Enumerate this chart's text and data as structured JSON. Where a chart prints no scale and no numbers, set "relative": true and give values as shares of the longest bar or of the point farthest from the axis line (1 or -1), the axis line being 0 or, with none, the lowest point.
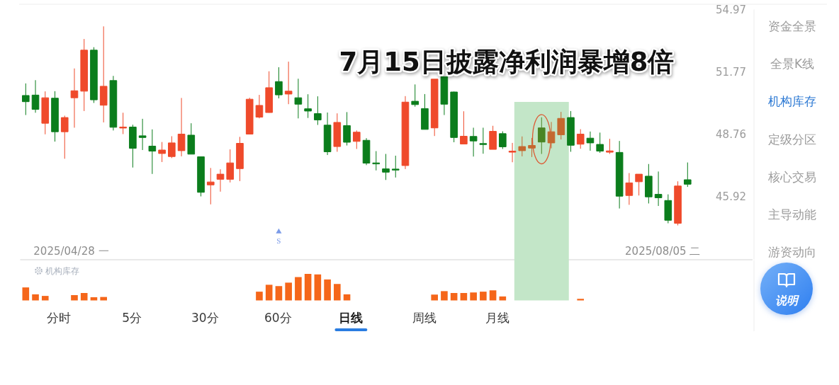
{
  "chart_data": [
    {
      "type": "candlestick",
      "title": "7月15日披露净利润暴增8倍",
      "categories": [
        null,
        null,
        null,
        null,
        null,
        null,
        null,
        null,
        null,
        null,
        null,
        null,
        null,
        null,
        null,
        null,
        null,
        null,
        null,
        null,
        null,
        null,
        null,
        null,
        null,
        null,
        null,
        null,
        null,
        null,
        null,
        null,
        null,
        null,
        null,
        null,
        null,
        null,
        null,
        null,
        null,
        null,
        null,
        null,
        null,
        null,
        null,
        null,
        null,
        null,
        null,
        null,
        null,
        null,
        null,
        null,
        null,
        null,
        null,
        null,
        null,
        null,
        null,
        null,
        null,
        null,
        null,
        null,
        null
      ],
      "ohlc": [
        [
          50.62,
          51.21,
          49.68,
          50.32
        ],
        [
          50.64,
          51.37,
          49.79,
          49.95
        ],
        [
          49.29,
          50.82,
          48.77,
          50.51
        ],
        [
          50.49,
          50.83,
          48.43,
          48.89
        ],
        [
          48.89,
          49.65,
          47.64,
          49.56
        ],
        [
          50.51,
          51.95,
          49.08,
          50.85
        ],
        [
          50.83,
          53.44,
          49.87,
          52.87
        ],
        [
          52.87,
          53.02,
          50.26,
          50.41
        ],
        [
          50.15,
          54.09,
          49.33,
          51.07
        ],
        [
          51.35,
          51.58,
          48.95,
          49.1
        ],
        [
          49.07,
          49.79,
          48.78,
          49.11
        ],
        [
          49.11,
          49.22,
          47.24,
          48.12
        ],
        [
          48.7,
          49.5,
          48.04,
          48.62
        ],
        [
          48.22,
          49.0,
          46.95,
          47.99
        ],
        [
          47.88,
          48.41,
          47.49,
          48.04
        ],
        [
          47.74,
          48.68,
          47.67,
          48.37
        ],
        [
          48.01,
          50.5,
          47.75,
          48.78
        ],
        [
          48.73,
          49.29,
          47.85,
          47.85
        ],
        [
          47.73,
          47.73,
          45.95,
          46.13
        ],
        [
          46.46,
          47.22,
          45.6,
          46.59
        ],
        [
          46.71,
          47.16,
          46.16,
          46.94
        ],
        [
          46.71,
          48.07,
          46.57,
          47.45
        ],
        [
          47.19,
          48.65,
          46.63,
          48.35
        ],
        [
          48.78,
          50.51,
          48.77,
          50.44
        ],
        [
          49.58,
          50.65,
          49.52,
          50.14
        ],
        [
          49.8,
          51.81,
          49.79,
          51.0
        ],
        [
          51.3,
          52.01,
          50.48,
          50.65
        ],
        [
          50.69,
          52.29,
          50.2,
          50.83
        ],
        [
          50.51,
          51.44,
          49.52,
          50.2
        ],
        [
          49.98,
          50.68,
          49.54,
          49.87
        ],
        [
          49.75,
          50.58,
          49.21,
          49.45
        ],
        [
          49.2,
          49.8,
          47.81,
          47.96
        ],
        [
          48.2,
          49.76,
          47.96,
          49.33
        ],
        [
          49.18,
          49.82,
          48.25,
          48.4
        ],
        [
          48.44,
          48.95,
          48.09,
          48.87
        ],
        [
          48.49,
          48.59,
          47.35,
          47.44
        ],
        [
          47.45,
          47.99,
          47.11,
          47.41
        ],
        [
          47.18,
          47.86,
          46.68,
          47.03
        ],
        [
          47.17,
          47.78,
          46.79,
          47.13
        ],
        [
          47.33,
          50.59,
          47.17,
          50.3
        ],
        [
          50.34,
          51.16,
          50.08,
          50.18
        ],
        [
          49.99,
          50.69,
          49.0,
          49.0
        ],
        [
          49.07,
          51.42,
          48.69,
          51.42
        ],
        [
          51.54,
          51.54,
          49.68,
          50.2
        ],
        [
          50.79,
          50.81,
          48.4,
          48.62
        ],
        [
          48.32,
          49.86,
          48.32,
          48.68
        ],
        [
          48.67,
          49.08,
          47.74,
          48.46
        ],
        [
          48.34,
          49.08,
          47.87,
          48.3
        ],
        [
          48.07,
          49.17,
          48.07,
          48.91
        ],
        [
          48.8,
          48.91,
          48.09,
          48.19
        ],
        [
          47.94,
          48.37,
          47.48,
          47.99
        ],
        [
          48.01,
          48.67,
          47.75,
          48.2
        ],
        [
          48.13,
          48.6,
          47.72,
          48.25
        ],
        [
          49.07,
          49.57,
          47.86,
          48.41
        ],
        [
          48.37,
          49.35,
          48.12,
          48.89
        ],
        [
          48.75,
          49.83,
          48.53,
          49.52
        ],
        [
          49.56,
          49.87,
          47.96,
          48.26
        ],
        [
          48.31,
          49.01,
          48.1,
          48.78
        ],
        [
          48.59,
          48.9,
          48.01,
          48.37
        ],
        [
          48.3,
          48.85,
          47.91,
          47.99
        ],
        [
          47.94,
          48.56,
          47.86,
          48.0
        ],
        [
          47.93,
          48.46,
          45.42,
          45.96
        ],
        [
          45.99,
          46.99,
          45.58,
          46.55
        ],
        [
          46.6,
          46.94,
          45.99,
          46.94
        ],
        [
          46.85,
          47.4,
          45.64,
          45.93
        ],
        [
          46.04,
          47.06,
          45.53,
          45.89
        ],
        [
          45.77,
          46.04,
          44.78,
          44.91
        ],
        [
          44.78,
          46.62,
          44.69,
          46.41
        ],
        [
          46.69,
          47.47,
          46.37,
          46.49
        ]
      ],
      "colors": [
        "#0b7d1c",
        "#0b7d1c",
        "#ef4a2b",
        "#0b7d1c",
        "#ef4a2b",
        "#ef4a2b",
        "#ef4a2b",
        "#0b7d1c",
        "#ef4a2b",
        "#0b7d1c",
        "#ef4a2b",
        "#0b7d1c",
        "#0b7d1c",
        "#0b7d1c",
        "#ef4a2b",
        "#ef4a2b",
        "#ef4a2b",
        "#0b7d1c",
        "#0b7d1c",
        "#ef4a2b",
        "#ef4a2b",
        "#ef4a2b",
        "#ef4a2b",
        "#ef4a2b",
        "#ef4a2b",
        "#ef4a2b",
        "#0b7d1c",
        "#ef4a2b",
        "#0b7d1c",
        "#0b7d1c",
        "#0b7d1c",
        "#0b7d1c",
        "#ef4a2b",
        "#0b7d1c",
        "#ef4a2b",
        "#0b7d1c",
        "#0b7d1c",
        "#0b7d1c",
        "#0b7d1c",
        "#ef4a2b",
        "#0b7d1c",
        "#0b7d1c",
        "#ef4a2b",
        "#0b7d1c",
        "#0b7d1c",
        "#ef4a2b",
        "#0b7d1c",
        "#0b7d1c",
        "#ef4a2b",
        "#0b7d1c",
        "#ef4a2b",
        "#c4682f",
        "#c4682f",
        "#4a8524",
        "#c4682f",
        "#c4682f",
        "#0b7d1c",
        "#ef4a2b",
        "#0b7d1c",
        "#0b7d1c",
        "#ef4a2b",
        "#0b7d1c",
        "#ef4a2b",
        "#ef4a2b",
        "#0b7d1c",
        "#0b7d1c",
        "#0b7d1c",
        "#ef4a2b",
        "#0b7d1c"
      ],
      "ylim": [
        43.25,
        54.97
      ],
      "yticks": [
        54.97,
        51.77,
        48.76,
        45.92
      ],
      "log": true,
      "marker": "triangle",
      "series": [
        {
          "type": "scatter",
          "name": "S",
          "color": "#7b9be8",
          "values": [
            null,
            null,
            null,
            null,
            null,
            null,
            null,
            null,
            null,
            null,
            null,
            null,
            null,
            null,
            null,
            null,
            null,
            null,
            null,
            null,
            null,
            null,
            null,
            null,
            null,
            null,
            44.42,
            null,
            null,
            null,
            null,
            null,
            null,
            null,
            null,
            null,
            null,
            null,
            null,
            null,
            null,
            null,
            null,
            null,
            null,
            null,
            null,
            null,
            null,
            null,
            null,
            null,
            null,
            null,
            null,
            null,
            null,
            null,
            null,
            null,
            null,
            null,
            null,
            null,
            null,
            null,
            null,
            null,
            null
          ]
        }
      ],
      "annotations": [
        "2025/04/28 一",
        "2025/08/05 二"
      ]
    },
    {
      "type": "bar",
      "title": "机构库存",
      "relative": true,
      "categories": [
        null,
        null,
        null,
        null,
        null,
        null,
        null,
        null,
        null,
        null,
        null,
        null,
        null,
        null,
        null,
        null,
        null,
        null,
        null,
        null,
        null,
        null,
        null,
        null,
        null,
        null,
        null,
        null,
        null,
        null,
        null,
        null,
        null,
        null,
        null,
        null,
        null,
        null,
        null,
        null,
        null,
        null,
        null,
        null,
        null,
        null,
        null,
        null,
        null,
        null,
        null,
        null,
        null,
        null,
        null,
        null,
        null,
        null,
        null,
        null,
        null,
        null,
        null,
        null,
        null,
        null,
        null,
        null,
        null
      ],
      "values": [
        0.49,
        0.23,
        0.17,
        null,
        null,
        0.2,
        0.28,
        0.12,
        0.13,
        null,
        null,
        null,
        null,
        null,
        null,
        null,
        null,
        null,
        null,
        null,
        null,
        null,
        null,
        null,
        0.33,
        0.59,
        0.54,
        0.67,
        0.88,
        1,
        0.98,
        0.79,
        0.62,
        0.23,
        null,
        null,
        null,
        null,
        null,
        null,
        null,
        null,
        0.22,
        0.35,
        0.28,
        0.28,
        0.3,
        0.33,
        0.38,
        0.15,
        null,
        null,
        null,
        null,
        null,
        null,
        null,
        0.06,
        null,
        null,
        null,
        null,
        null,
        null,
        null,
        null,
        null,
        null,
        null
      ],
      "color": "#f5661a"
    },
    {
      "type": "other",
      "annotations": [
        "分时",
        "5分",
        "30分",
        "60分",
        "日线",
        "周线",
        "月线"
      ]
    },
    {
      "type": "other",
      "annotations": [
        "资金全景",
        "全景K线",
        "机构库存",
        "定级分区",
        "核心交易",
        "主导动能",
        "游资动向",
        "说明"
      ]
    }
  ]
}
